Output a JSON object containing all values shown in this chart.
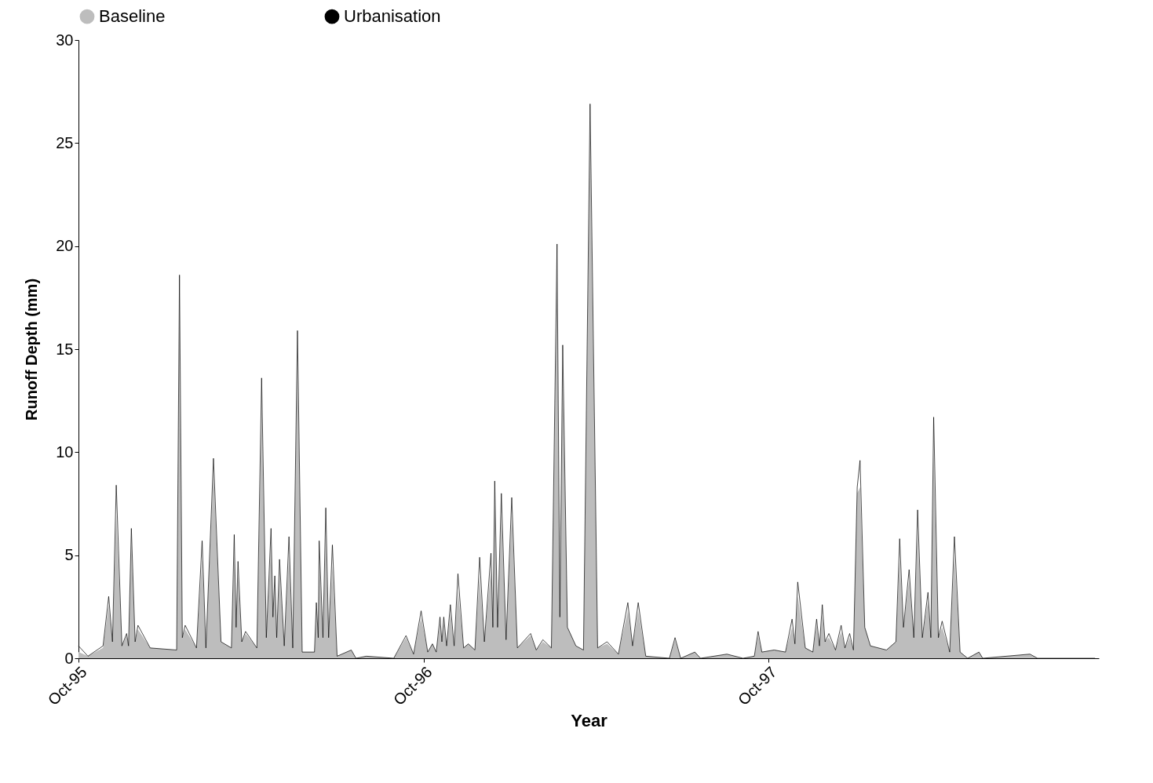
{
  "chart_data": {
    "type": "line",
    "xlabel": "Year",
    "ylabel": "Runoff Depth (mm)",
    "x": [
      "1995-10-01",
      "1995-10-11",
      "1995-10-27",
      "1995-11-02",
      "1995-11-06",
      "1995-11-10",
      "1995-11-16",
      "1995-11-21",
      "1995-11-23",
      "1995-11-26",
      "1995-11-30",
      "1995-12-03",
      "1995-12-16",
      "1996-01-13",
      "1996-01-16",
      "1996-01-19",
      "1996-01-22",
      "1996-02-03",
      "1996-02-09",
      "1996-02-13",
      "1996-02-21",
      "1996-02-29",
      "1996-03-11",
      "1996-03-14",
      "1996-03-16",
      "1996-03-18",
      "1996-03-22",
      "1996-03-26",
      "1996-04-07",
      "1996-04-12",
      "1996-04-17",
      "1996-04-22",
      "1996-04-24",
      "1996-04-26",
      "1996-04-28",
      "1996-05-01",
      "1996-05-06",
      "1996-05-11",
      "1996-05-15",
      "1996-05-20",
      "1996-05-25",
      "1996-06-07",
      "1996-06-09",
      "1996-06-11",
      "1996-06-12",
      "1996-06-16",
      "1996-06-19",
      "1996-06-22",
      "1996-06-26",
      "1996-07-01",
      "1996-07-16",
      "1996-07-21",
      "1996-08-01",
      "1996-08-30",
      "1996-09-12",
      "1996-09-20",
      "1996-09-28",
      "1996-10-05",
      "1996-10-10",
      "1996-10-14",
      "1996-10-18",
      "1996-10-20",
      "1996-10-22",
      "1996-10-25",
      "1996-10-29",
      "1996-11-02",
      "1996-11-06",
      "1996-11-12",
      "1996-11-17",
      "1996-11-24",
      "1996-11-29",
      "1996-12-04",
      "1996-12-11",
      "1996-12-13",
      "1996-12-15",
      "1996-12-18",
      "1996-12-22",
      "1996-12-27",
      "1997-01-02",
      "1997-01-08",
      "1997-01-22",
      "1997-01-28",
      "1997-02-04",
      "1997-02-13",
      "1997-02-19",
      "1997-02-22",
      "1997-02-25",
      "1997-03-02",
      "1997-03-11",
      "1997-03-19",
      "1997-03-26",
      "1997-04-03",
      "1997-04-13",
      "1997-04-25",
      "1997-05-05",
      "1997-05-10",
      "1997-05-16",
      "1997-05-24",
      "1997-06-18",
      "1997-06-24",
      "1997-06-30",
      "1997-07-15",
      "1997-07-21",
      "1997-08-18",
      "1997-09-04",
      "1997-09-16",
      "1997-09-20",
      "1997-09-24",
      "1997-10-07",
      "1997-10-19",
      "1997-10-26",
      "1997-10-29",
      "1997-11-01",
      "1997-11-09",
      "1997-11-17",
      "1997-11-21",
      "1997-11-24",
      "1997-11-27",
      "1997-11-30",
      "1997-12-04",
      "1997-12-11",
      "1997-12-17",
      "1997-12-21",
      "1997-12-26",
      "1997-12-30",
      "1998-01-03",
      "1998-01-06",
      "1998-01-11",
      "1998-01-17",
      "1998-02-03",
      "1998-02-13",
      "1998-02-17",
      "1998-02-21",
      "1998-02-27",
      "1998-03-04",
      "1998-03-08",
      "1998-03-13",
      "1998-03-19",
      "1998-03-22",
      "1998-03-25",
      "1998-03-30",
      "1998-04-03",
      "1998-04-11",
      "1998-04-16",
      "1998-04-22",
      "1998-04-30",
      "1998-05-12",
      "1998-05-16",
      "1998-07-05",
      "1998-07-13",
      "1998-09-12"
    ],
    "series": [
      {
        "name": "Baseline",
        "type": "area",
        "color": "#bdbdbd",
        "values": [
          0.3,
          0.1,
          0.5,
          2.6,
          0.8,
          7.0,
          0.6,
          1.1,
          0.6,
          5.5,
          0.8,
          1.4,
          0.5,
          0.4,
          16.5,
          1.0,
          1.4,
          0.5,
          4.8,
          0.5,
          9.0,
          0.8,
          0.5,
          5.0,
          1.5,
          4.0,
          0.8,
          1.2,
          0.5,
          12.0,
          1.0,
          5.5,
          2.0,
          3.5,
          1.0,
          4.2,
          0.6,
          5.0,
          0.5,
          14.5,
          0.3,
          0.3,
          2.3,
          1.0,
          4.8,
          1.0,
          6.0,
          1.0,
          4.5,
          0.1,
          0.4,
          0,
          0.1,
          0,
          1.0,
          0.2,
          2.0,
          0.3,
          0.7,
          0.3,
          1.7,
          0.8,
          1.7,
          0.6,
          2.2,
          0.6,
          3.3,
          0.5,
          0.7,
          0.4,
          4.0,
          0.8,
          4.3,
          1.5,
          7.5,
          1.5,
          7.0,
          0.9,
          7.0,
          0.5,
          1.1,
          0.4,
          0.8,
          0.5,
          18.5,
          2.0,
          14.0,
          1.5,
          0.6,
          0.4,
          25.5,
          0.5,
          0.7,
          0.2,
          2.3,
          0.6,
          2.3,
          0.1,
          0,
          0.9,
          0,
          0.3,
          0,
          0.2,
          0,
          0.1,
          1.1,
          0.3,
          0.4,
          0.3,
          1.5,
          0.7,
          3.0,
          0.5,
          0.3,
          1.6,
          0.6,
          2.1,
          0.8,
          1.0,
          0.4,
          1.3,
          0.5,
          1.0,
          0.4,
          8.0,
          8.3,
          1.5,
          0.6,
          0.4,
          0.8,
          4.8,
          1.5,
          3.8,
          1.0,
          6.2,
          1.0,
          2.8,
          1.0,
          10.0,
          1.0,
          1.5,
          0.3,
          5.0,
          0.3,
          0,
          0.3,
          0,
          0.2,
          0,
          0
        ]
      },
      {
        "name": "Urbanisation",
        "type": "line",
        "color": "#000000",
        "values": [
          0.6,
          0.1,
          0.6,
          3.0,
          0.8,
          8.4,
          0.6,
          1.2,
          0.6,
          6.3,
          0.8,
          1.6,
          0.5,
          0.4,
          18.6,
          1.0,
          1.6,
          0.5,
          5.7,
          0.5,
          9.7,
          0.8,
          0.5,
          6.0,
          1.5,
          4.7,
          0.8,
          1.3,
          0.5,
          13.6,
          1.0,
          6.3,
          2.0,
          4.0,
          1.0,
          4.8,
          0.6,
          5.9,
          0.5,
          15.9,
          0.3,
          0.3,
          2.7,
          1.0,
          5.7,
          1.0,
          7.3,
          1.0,
          5.5,
          0.1,
          0.4,
          0,
          0.1,
          0,
          1.1,
          0.2,
          2.3,
          0.3,
          0.7,
          0.3,
          2.0,
          0.8,
          2.0,
          0.6,
          2.6,
          0.6,
          4.1,
          0.5,
          0.7,
          0.4,
          4.9,
          0.8,
          5.1,
          1.5,
          8.6,
          1.5,
          8.0,
          0.9,
          7.8,
          0.5,
          1.2,
          0.4,
          0.9,
          0.5,
          20.1,
          2.0,
          15.2,
          1.5,
          0.6,
          0.4,
          26.9,
          0.5,
          0.8,
          0.2,
          2.7,
          0.6,
          2.7,
          0.1,
          0,
          1.0,
          0,
          0.3,
          0,
          0.2,
          0,
          0.1,
          1.3,
          0.3,
          0.4,
          0.3,
          1.9,
          0.7,
          3.7,
          0.5,
          0.3,
          1.9,
          0.6,
          2.6,
          0.8,
          1.2,
          0.4,
          1.6,
          0.5,
          1.2,
          0.4,
          8.3,
          9.6,
          1.5,
          0.6,
          0.4,
          0.8,
          5.8,
          1.5,
          4.3,
          1.0,
          7.2,
          1.0,
          3.2,
          1.0,
          11.7,
          1.0,
          1.8,
          0.3,
          5.9,
          0.3,
          0,
          0.3,
          0,
          0.2,
          0,
          0
        ]
      }
    ],
    "xlim": [
      "1995-10-01",
      "1998-09-16"
    ],
    "xticks": [
      {
        "value": "1995-10-01",
        "label": "Oct-95"
      },
      {
        "value": "1996-10-01",
        "label": "Oct-96"
      },
      {
        "value": "1997-10-01",
        "label": "Oct-97"
      }
    ],
    "ylim": [
      0,
      30
    ],
    "yticks": [
      0,
      5,
      10,
      15,
      20,
      25,
      30
    ],
    "grid": false,
    "legend": "top",
    "marker": "none",
    "line_style": "solid"
  }
}
